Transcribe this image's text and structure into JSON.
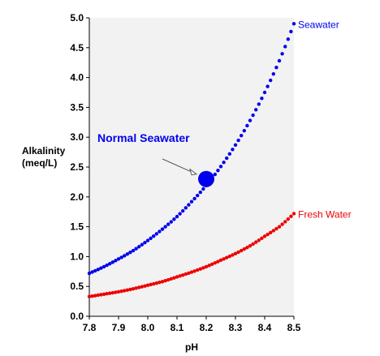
{
  "chart_data": {
    "type": "scatter",
    "xlabel": "pH",
    "ylabel": [
      "Alkalinity",
      "(meq/L)"
    ],
    "xlim": [
      7.8,
      8.5
    ],
    "ylim": [
      0.0,
      5.0
    ],
    "x_ticks": [
      "7.8",
      "7.9",
      "8.0",
      "8.1",
      "8.2",
      "8.3",
      "8.4",
      "8.5"
    ],
    "y_ticks": [
      "0.0",
      "0.5",
      "1.0",
      "1.5",
      "2.0",
      "2.5",
      "3.0",
      "3.5",
      "4.0",
      "4.5",
      "5.0"
    ],
    "grid": false,
    "plot_background": "#f2f2f2",
    "series": [
      {
        "name": "Seawater",
        "color": "#0000ee",
        "x": [
          7.8,
          7.85,
          7.9,
          7.95,
          8.0,
          8.05,
          8.1,
          8.15,
          8.2,
          8.25,
          8.3,
          8.35,
          8.4,
          8.45,
          8.5
        ],
        "y": [
          0.72,
          0.83,
          0.96,
          1.1,
          1.27,
          1.46,
          1.67,
          1.92,
          2.19,
          2.51,
          2.87,
          3.28,
          3.75,
          4.28,
          4.9
        ]
      },
      {
        "name": "Fresh Water",
        "color": "#ee0000",
        "x": [
          7.8,
          7.85,
          7.9,
          7.95,
          8.0,
          8.05,
          8.1,
          8.15,
          8.2,
          8.25,
          8.3,
          8.35,
          8.4,
          8.45,
          8.5
        ],
        "y": [
          0.33,
          0.37,
          0.41,
          0.46,
          0.52,
          0.58,
          0.66,
          0.74,
          0.83,
          0.94,
          1.05,
          1.18,
          1.34,
          1.5,
          1.72
        ]
      }
    ],
    "highlight_point": {
      "label": "Normal Seawater",
      "x": 8.2,
      "y": 2.3,
      "color": "#0000ee"
    }
  }
}
